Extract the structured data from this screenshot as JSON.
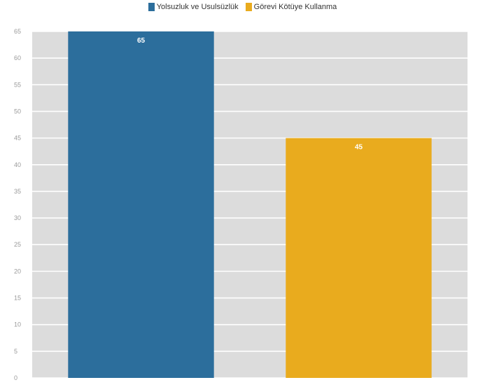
{
  "chart_data": {
    "type": "bar",
    "categories": [
      "Yolsuzluk ve Usulsüzlük",
      "Görevi Kötüye Kullanma"
    ],
    "values": [
      65,
      45
    ],
    "colors": [
      "#2c6e9c",
      "#e9ab1e"
    ],
    "data_labels": [
      "65",
      "45"
    ],
    "ylim": [
      0,
      65
    ],
    "yticks": [
      0,
      5,
      10,
      15,
      20,
      25,
      30,
      35,
      40,
      45,
      50,
      55,
      60,
      65
    ],
    "grid": true,
    "legend_position": "top-center",
    "plot_background": "#dcdcdc",
    "title": "",
    "xlabel": "",
    "ylabel": ""
  }
}
